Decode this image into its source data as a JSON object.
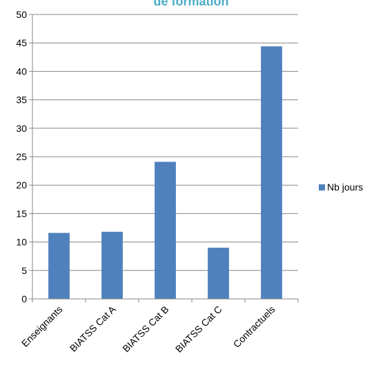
{
  "chart_data": {
    "type": "bar",
    "title": "de formation",
    "title_color": "#4BACC6",
    "categories": [
      "Enseignants",
      "BIATSS Cat A",
      "BIATSS Cat B",
      "BIATSS Cat C",
      "Contractuels"
    ],
    "series": [
      {
        "name": "Nb jours",
        "values": [
          11.6,
          11.8,
          24.1,
          9.0,
          44.4
        ],
        "color": "#4F81BD"
      }
    ],
    "ylim": [
      0,
      50
    ],
    "yticks": [
      0,
      5,
      10,
      15,
      20,
      25,
      30,
      35,
      40,
      45,
      50
    ],
    "grid": true,
    "legend_position": "right"
  }
}
